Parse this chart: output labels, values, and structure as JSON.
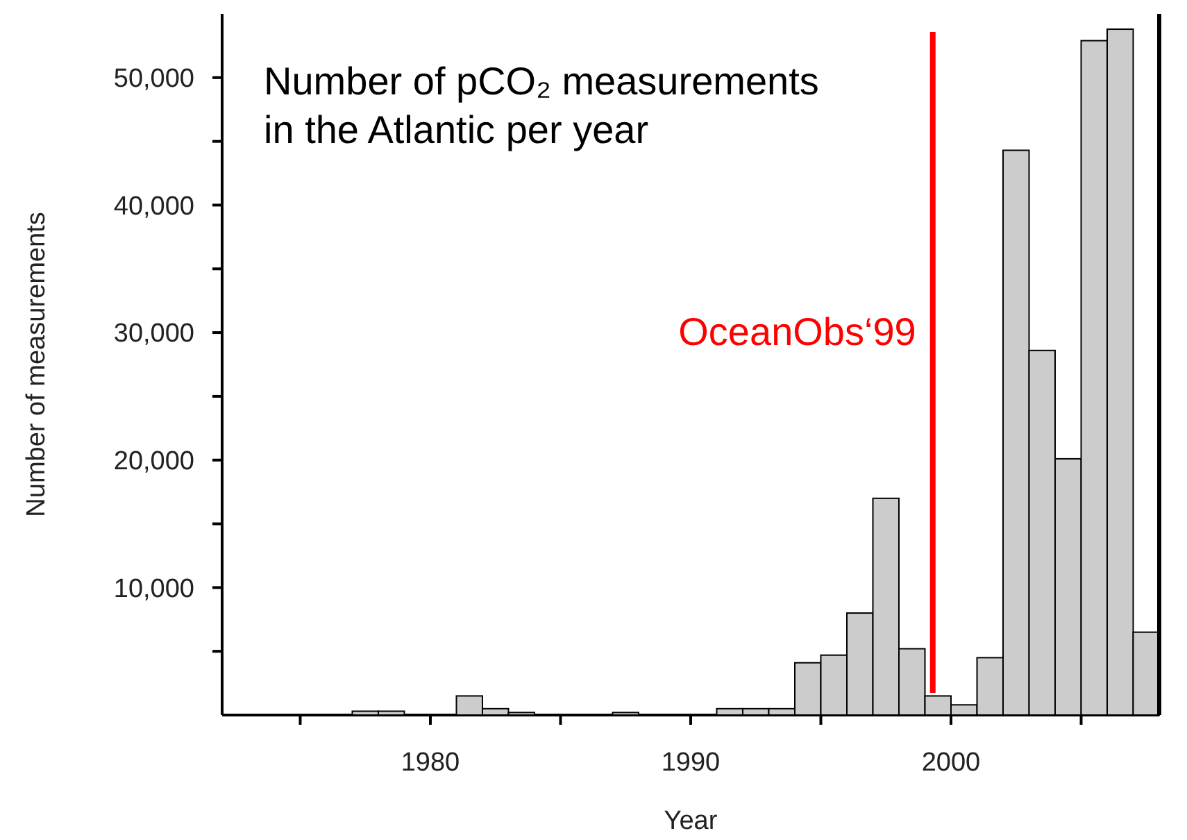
{
  "chart_data": {
    "type": "histogram",
    "title": "Number of pCO₂ measurements in the Atlantic per year",
    "xlabel": "Year",
    "ylabel": "Number of measurements",
    "bins": [
      1972,
      1973,
      1974,
      1975,
      1976,
      1977,
      1978,
      1979,
      1980,
      1981,
      1982,
      1983,
      1984,
      1985,
      1986,
      1987,
      1988,
      1989,
      1990,
      1991,
      1992,
      1993,
      1994,
      1995,
      1996,
      1997,
      1998,
      1999,
      2000,
      2001,
      2002,
      2003,
      2004,
      2005,
      2006,
      2007,
      2008
    ],
    "values": [
      0,
      0,
      0,
      0,
      0,
      300,
      300,
      0,
      0,
      1500,
      500,
      200,
      0,
      0,
      0,
      200,
      0,
      0,
      0,
      500,
      500,
      500,
      4100,
      4700,
      8000,
      17000,
      5200,
      1500,
      800,
      4500,
      44300,
      28600,
      20100,
      52900,
      53800,
      6500
    ],
    "color": "#cccccc",
    "xlim": [
      1972,
      2008
    ],
    "xticks": [
      {
        "value": 1975,
        "label": null
      },
      1980,
      {
        "value": 1985,
        "label": null
      },
      1990,
      {
        "value": 1995,
        "label": null
      },
      2000,
      {
        "value": 2005,
        "label": null
      }
    ],
    "ylim": [
      0,
      55000
    ],
    "yticks": [
      {
        "value": 5000,
        "label": null
      },
      {
        "value": 10000,
        "label": "10,000"
      },
      {
        "value": 15000,
        "label": null
      },
      {
        "value": 20000,
        "label": "20,000"
      },
      {
        "value": 25000,
        "label": null
      },
      {
        "value": 30000,
        "label": "30,000"
      },
      {
        "value": 35000,
        "label": null
      },
      {
        "value": 40000,
        "label": "40,000"
      },
      {
        "value": 45000,
        "label": null
      },
      {
        "value": 50000,
        "label": "50,000"
      }
    ],
    "ref_lines": [
      {
        "axis": "x",
        "value": 1999.3,
        "label": "OceanObs‘99",
        "color": "#ff0000"
      }
    ]
  }
}
